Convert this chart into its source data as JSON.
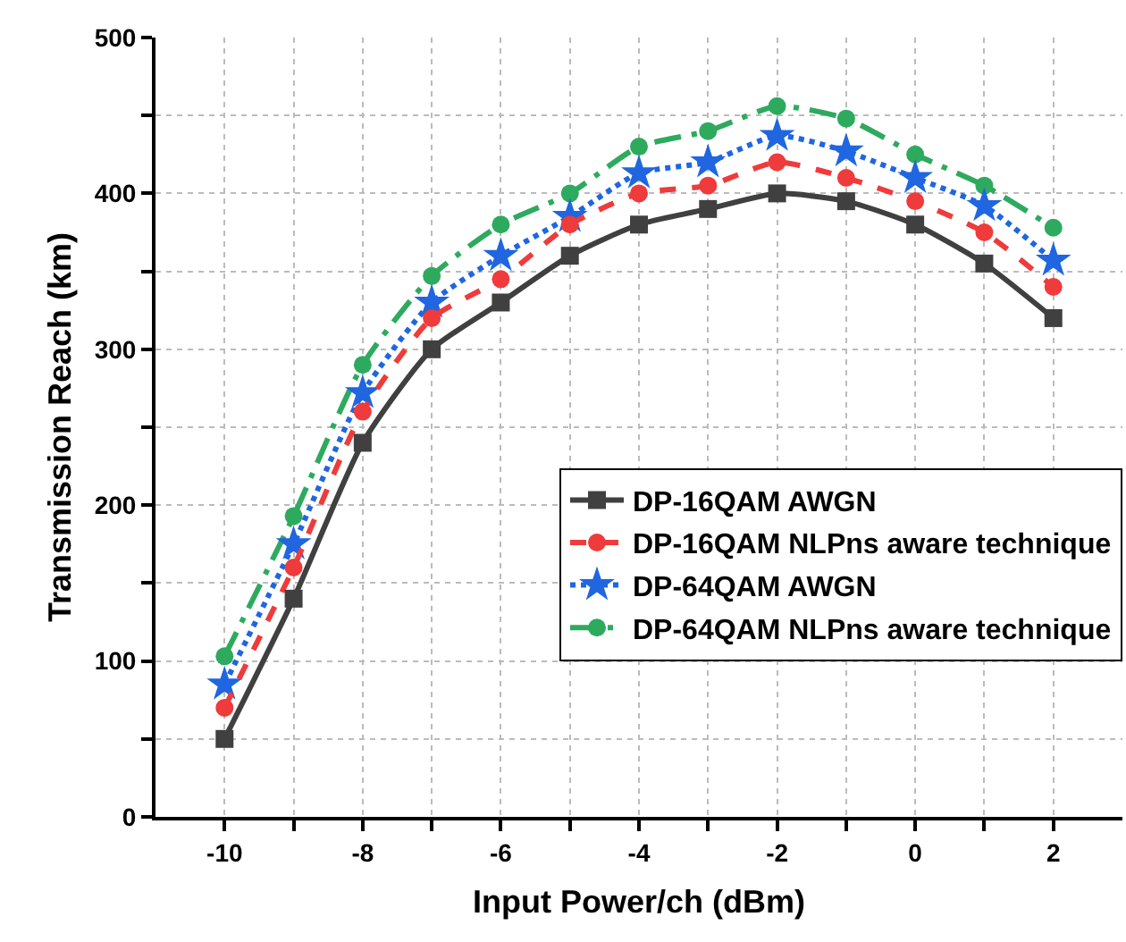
{
  "chart_data": {
    "type": "line",
    "xlabel": "Input Power/ch (dBm)",
    "ylabel": "Transmission Reach (km)",
    "x": [
      -10,
      -9,
      -8,
      -7,
      -6,
      -5,
      -4,
      -3,
      -2,
      -1,
      0,
      1,
      2
    ],
    "xlim": [
      -11,
      3
    ],
    "xticks": [
      -10,
      {
        "value": -9,
        "label": null
      },
      -8,
      {
        "value": -7,
        "label": null
      },
      -6,
      {
        "value": -5,
        "label": null
      },
      -4,
      {
        "value": -3,
        "label": null
      },
      -2,
      {
        "value": -1,
        "label": null
      },
      0,
      {
        "value": 1,
        "label": null
      },
      2
    ],
    "ylim": [
      0,
      500
    ],
    "yticks": [
      0,
      {
        "value": 50,
        "label": null
      },
      100,
      {
        "value": 150,
        "label": null
      },
      200,
      {
        "value": 250,
        "label": null
      },
      300,
      {
        "value": 350,
        "label": null
      },
      400,
      {
        "value": 450,
        "label": null
      },
      500
    ],
    "grid": true,
    "legend": "right",
    "series": [
      {
        "name": "DP-16QAM AWGN",
        "color": "#404040",
        "marker": "square",
        "line_style": "solid",
        "values": [
          50,
          140,
          240,
          300,
          330,
          360,
          380,
          390,
          400,
          395,
          380,
          355,
          320
        ]
      },
      {
        "name": "DP-16QAM NLPns aware technique",
        "color": "#ef3b3b",
        "marker": "circle",
        "line_style": "dashed",
        "values": [
          70,
          160,
          260,
          320,
          345,
          380,
          400,
          405,
          420,
          410,
          395,
          375,
          340
        ]
      },
      {
        "name": "DP-64QAM AWGN",
        "color": "#1f66e0",
        "marker": "star",
        "line_style": "dotted",
        "values": [
          85,
          175,
          272,
          330,
          360,
          385,
          413,
          420,
          437,
          427,
          410,
          392,
          357
        ]
      },
      {
        "name": "DP-64QAM NLPns aware technique",
        "color": "#2eaa5e",
        "marker": "circle",
        "line_style": "dashdot",
        "values": [
          103,
          193,
          290,
          347,
          380,
          400,
          430,
          440,
          456,
          448,
          425,
          405,
          378
        ]
      }
    ]
  }
}
